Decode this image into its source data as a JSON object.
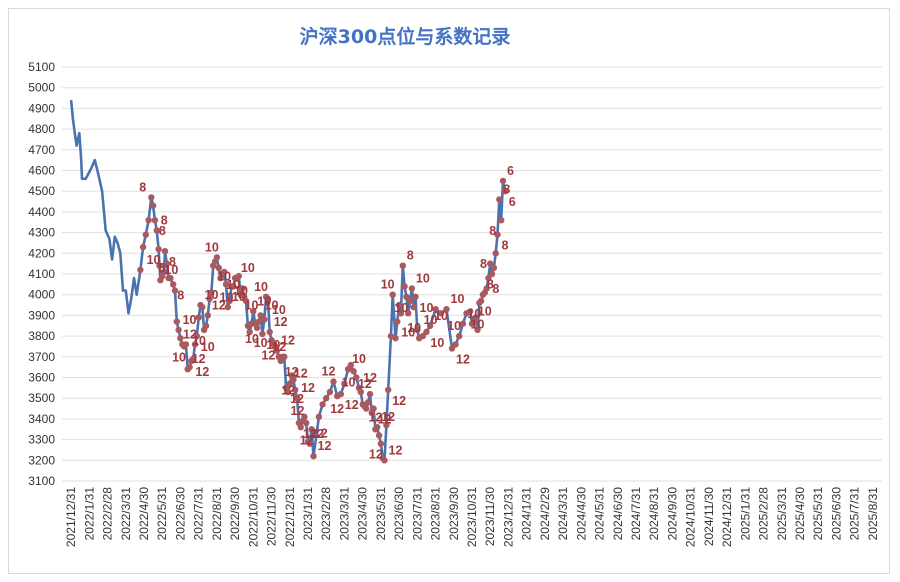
{
  "chart_data": {
    "type": "line",
    "title": "沪深300点位与系数记录",
    "xlabel": "",
    "ylabel": "",
    "ylim": [
      3100,
      5100
    ],
    "ytick_step": 100,
    "grid": true,
    "legend": "none",
    "colors": {
      "line": "#4a73b0",
      "marker": "#a85a5f",
      "label": "#a0393d",
      "grid": "#e0e0e0"
    },
    "x_tick_labels": [
      "2021/12/31",
      "2022/1/31",
      "2022/2/28",
      "2022/3/31",
      "2022/4/30",
      "2022/5/31",
      "2022/6/30",
      "2022/7/31",
      "2022/8/31",
      "2022/9/30",
      "2022/10/31",
      "2022/11/30",
      "2022/12/31",
      "2023/1/31",
      "2023/2/28",
      "2023/3/31",
      "2023/4/30",
      "2023/5/31",
      "2023/6/30",
      "2023/7/31",
      "2023/8/31",
      "2023/9/30",
      "2023/10/31",
      "2023/11/30",
      "2023/12/31",
      "2024/1/31",
      "2024/2/29",
      "2024/3/31",
      "2024/4/30",
      "2024/5/31",
      "2024/6/30",
      "2024/7/31",
      "2024/8/31",
      "2024/9/30",
      "2024/10/31",
      "2024/11/30",
      "2024/12/31",
      "2025/1/31",
      "2025/2/28",
      "2025/3/31",
      "2025/4/30",
      "2025/5/31",
      "2025/6/30",
      "2025/7/31",
      "2025/8/31"
    ],
    "series": [
      {
        "values": [
          [
            0,
            4940
          ],
          [
            0.1,
            4850
          ],
          [
            0.2,
            4780
          ],
          [
            0.3,
            4720
          ],
          [
            0.45,
            4780
          ],
          [
            0.55,
            4660
          ],
          [
            0.6,
            4560
          ],
          [
            0.8,
            4560
          ],
          [
            1.1,
            4610
          ],
          [
            1.3,
            4650
          ],
          [
            1.5,
            4580
          ],
          [
            1.7,
            4500
          ],
          [
            1.9,
            4310
          ],
          [
            2.1,
            4270
          ],
          [
            2.25,
            4170
          ],
          [
            2.4,
            4280
          ],
          [
            2.55,
            4250
          ],
          [
            2.7,
            4200
          ],
          [
            2.85,
            4020
          ],
          [
            3.0,
            4020
          ],
          [
            3.15,
            3910
          ],
          [
            3.3,
            3980
          ],
          [
            3.45,
            4080
          ],
          [
            3.6,
            4000
          ],
          [
            3.8,
            4120
          ],
          [
            3.95,
            4230
          ],
          [
            4.1,
            4290
          ],
          [
            4.25,
            4360
          ],
          [
            4.4,
            4470
          ],
          [
            4.5,
            4430
          ],
          [
            4.6,
            4360
          ],
          [
            4.7,
            4310
          ],
          [
            4.8,
            4220
          ],
          [
            4.85,
            4140
          ],
          [
            4.9,
            4070
          ],
          [
            5.0,
            4090
          ],
          [
            5.1,
            4110
          ],
          [
            5.15,
            4210
          ],
          [
            5.25,
            4150
          ],
          [
            5.35,
            4080
          ],
          [
            5.45,
            4080
          ],
          [
            5.6,
            4050
          ],
          [
            5.7,
            4020
          ],
          [
            5.8,
            3870
          ],
          [
            5.9,
            3830
          ],
          [
            6.0,
            3790
          ],
          [
            6.1,
            3760
          ],
          [
            6.2,
            3750
          ],
          [
            6.3,
            3760
          ],
          [
            6.4,
            3640
          ],
          [
            6.5,
            3650
          ],
          [
            6.6,
            3680
          ],
          [
            6.7,
            3690
          ],
          [
            6.8,
            3760
          ],
          [
            6.9,
            3800
          ],
          [
            7.0,
            3890
          ],
          [
            7.1,
            3950
          ],
          [
            7.2,
            3940
          ],
          [
            7.3,
            3830
          ],
          [
            7.4,
            3850
          ],
          [
            7.5,
            3900
          ],
          [
            7.6,
            3980
          ],
          [
            7.7,
            4010
          ],
          [
            7.8,
            4140
          ],
          [
            7.9,
            4160
          ],
          [
            8.0,
            4180
          ],
          [
            8.1,
            4130
          ],
          [
            8.2,
            4080
          ],
          [
            8.3,
            4100
          ],
          [
            8.4,
            4110
          ],
          [
            8.5,
            4050
          ],
          [
            8.6,
            3940
          ],
          [
            8.7,
            3970
          ],
          [
            8.8,
            4040
          ],
          [
            8.9,
            4040
          ],
          [
            9.0,
            4080
          ],
          [
            9.1,
            4080
          ],
          [
            9.2,
            4090
          ],
          [
            9.3,
            4000
          ],
          [
            9.4,
            4030
          ],
          [
            9.5,
            3990
          ],
          [
            9.6,
            3970
          ],
          [
            9.7,
            3850
          ],
          [
            9.8,
            3820
          ],
          [
            9.9,
            3860
          ],
          [
            10.0,
            3920
          ],
          [
            10.1,
            3860
          ],
          [
            10.2,
            3840
          ],
          [
            10.3,
            3870
          ],
          [
            10.4,
            3900
          ],
          [
            10.5,
            3810
          ],
          [
            10.6,
            3880
          ],
          [
            10.7,
            3990
          ],
          [
            10.8,
            3980
          ],
          [
            10.9,
            3820
          ],
          [
            11.0,
            3780
          ],
          [
            11.1,
            3760
          ],
          [
            11.2,
            3750
          ],
          [
            11.3,
            3730
          ],
          [
            11.4,
            3700
          ],
          [
            11.5,
            3680
          ],
          [
            11.6,
            3700
          ],
          [
            11.7,
            3700
          ],
          [
            11.8,
            3550
          ],
          [
            11.9,
            3530
          ],
          [
            12.0,
            3570
          ],
          [
            12.1,
            3610
          ],
          [
            12.2,
            3590
          ],
          [
            12.3,
            3540
          ],
          [
            12.4,
            3500
          ],
          [
            12.5,
            3380
          ],
          [
            12.6,
            3360
          ],
          [
            12.7,
            3390
          ],
          [
            12.8,
            3410
          ],
          [
            12.9,
            3380
          ],
          [
            13.0,
            3290
          ],
          [
            13.1,
            3280
          ],
          [
            13.2,
            3350
          ],
          [
            13.3,
            3220
          ],
          [
            13.6,
            3410
          ],
          [
            13.8,
            3470
          ],
          [
            14.0,
            3500
          ],
          [
            14.2,
            3530
          ],
          [
            14.4,
            3580
          ],
          [
            14.6,
            3510
          ],
          [
            14.8,
            3520
          ],
          [
            15.0,
            3570
          ],
          [
            15.2,
            3640
          ],
          [
            15.35,
            3660
          ],
          [
            15.5,
            3630
          ],
          [
            15.65,
            3600
          ],
          [
            15.8,
            3550
          ],
          [
            15.9,
            3530
          ],
          [
            16.0,
            3470
          ],
          [
            16.1,
            3460
          ],
          [
            16.2,
            3450
          ],
          [
            16.3,
            3480
          ],
          [
            16.4,
            3520
          ],
          [
            16.5,
            3430
          ],
          [
            16.6,
            3450
          ],
          [
            16.7,
            3350
          ],
          [
            16.8,
            3360
          ],
          [
            16.9,
            3320
          ],
          [
            17.0,
            3280
          ],
          [
            17.1,
            3210
          ],
          [
            17.2,
            3200
          ],
          [
            17.3,
            3370
          ],
          [
            17.4,
            3540
          ],
          [
            17.55,
            3800
          ],
          [
            17.65,
            4000
          ],
          [
            17.8,
            3790
          ],
          [
            17.9,
            3870
          ],
          [
            18.0,
            3950
          ],
          [
            18.1,
            3910
          ],
          [
            18.2,
            4140
          ],
          [
            18.3,
            4040
          ],
          [
            18.4,
            3990
          ],
          [
            18.5,
            3910
          ],
          [
            18.6,
            3970
          ],
          [
            18.7,
            4030
          ],
          [
            18.8,
            3940
          ],
          [
            18.9,
            3990
          ],
          [
            19.0,
            3830
          ],
          [
            19.1,
            3790
          ],
          [
            19.3,
            3800
          ],
          [
            19.5,
            3820
          ],
          [
            19.7,
            3850
          ],
          [
            20.0,
            3930
          ],
          [
            20.3,
            3910
          ],
          [
            20.6,
            3930
          ],
          [
            20.9,
            3740
          ],
          [
            21.1,
            3760
          ],
          [
            21.3,
            3800
          ],
          [
            21.5,
            3860
          ],
          [
            21.7,
            3910
          ],
          [
            21.9,
            3920
          ],
          [
            22.0,
            3860
          ],
          [
            22.1,
            3870
          ],
          [
            22.2,
            3890
          ],
          [
            22.3,
            3830
          ],
          [
            22.4,
            3960
          ],
          [
            22.5,
            3970
          ],
          [
            22.6,
            4000
          ],
          [
            22.7,
            4010
          ],
          [
            22.8,
            4030
          ],
          [
            22.9,
            4080
          ],
          [
            23.0,
            4150
          ],
          [
            23.1,
            4100
          ],
          [
            23.2,
            4130
          ],
          [
            23.3,
            4200
          ],
          [
            23.4,
            4290
          ],
          [
            23.5,
            4460
          ],
          [
            23.6,
            4360
          ],
          [
            23.7,
            4550
          ],
          [
            23.8,
            4500
          ]
        ],
        "markers_from_index": 24
      }
    ],
    "annotations": [
      {
        "x": 4.4,
        "y": 4470,
        "text": "8"
      },
      {
        "x": 4.6,
        "y": 4360,
        "text": "8"
      },
      {
        "x": 4.7,
        "y": 4310,
        "text": "8"
      },
      {
        "x": 4.8,
        "y": 4220,
        "text": "10"
      },
      {
        "x": 4.9,
        "y": 4070,
        "text": "10"
      },
      {
        "x": 5.15,
        "y": 4210,
        "text": "8"
      },
      {
        "x": 5.45,
        "y": 4080,
        "text": "8"
      },
      {
        "x": 5.6,
        "y": 4050,
        "text": "8"
      },
      {
        "x": 5.9,
        "y": 3830,
        "text": "10"
      },
      {
        "x": 6.2,
        "y": 3750,
        "text": "10"
      },
      {
        "x": 6.4,
        "y": 3640,
        "text": "12"
      },
      {
        "x": 6.6,
        "y": 3680,
        "text": "12"
      },
      {
        "x": 6.8,
        "y": 3760,
        "text": "12"
      },
      {
        "x": 6.9,
        "y": 3800,
        "text": "10"
      },
      {
        "x": 7.1,
        "y": 3950,
        "text": "10"
      },
      {
        "x": 7.3,
        "y": 3830,
        "text": "10"
      },
      {
        "x": 7.5,
        "y": 3900,
        "text": "12"
      },
      {
        "x": 7.8,
        "y": 4140,
        "text": "10"
      },
      {
        "x": 8.0,
        "y": 4180,
        "text": "10"
      },
      {
        "x": 8.3,
        "y": 4100,
        "text": "10"
      },
      {
        "x": 8.6,
        "y": 3940,
        "text": "10"
      },
      {
        "x": 8.8,
        "y": 4040,
        "text": "10"
      },
      {
        "x": 9.1,
        "y": 4080,
        "text": "10"
      },
      {
        "x": 9.3,
        "y": 4000,
        "text": "10"
      },
      {
        "x": 9.6,
        "y": 3970,
        "text": "10"
      },
      {
        "x": 9.8,
        "y": 3820,
        "text": "10"
      },
      {
        "x": 10.0,
        "y": 3920,
        "text": "10"
      },
      {
        "x": 10.2,
        "y": 3840,
        "text": "10"
      },
      {
        "x": 10.4,
        "y": 3900,
        "text": "10"
      },
      {
        "x": 10.5,
        "y": 3810,
        "text": "10"
      },
      {
        "x": 10.7,
        "y": 3990,
        "text": "10"
      },
      {
        "x": 10.8,
        "y": 3980,
        "text": "10"
      },
      {
        "x": 10.9,
        "y": 3820,
        "text": "12"
      },
      {
        "x": 11.1,
        "y": 3760,
        "text": "12"
      },
      {
        "x": 11.3,
        "y": 3730,
        "text": "12"
      },
      {
        "x": 11.5,
        "y": 3680,
        "text": "12"
      },
      {
        "x": 11.7,
        "y": 3700,
        "text": "12"
      },
      {
        "x": 11.8,
        "y": 3550,
        "text": "12"
      },
      {
        "x": 12.0,
        "y": 3570,
        "text": "12"
      },
      {
        "x": 12.2,
        "y": 3590,
        "text": "12"
      },
      {
        "x": 12.4,
        "y": 3500,
        "text": "12"
      },
      {
        "x": 12.5,
        "y": 3380,
        "text": "12"
      },
      {
        "x": 12.7,
        "y": 3390,
        "text": "12"
      },
      {
        "x": 12.9,
        "y": 3380,
        "text": "12"
      },
      {
        "x": 13.1,
        "y": 3280,
        "text": "12"
      },
      {
        "x": 13.2,
        "y": 3350,
        "text": "12"
      },
      {
        "x": 13.3,
        "y": 3220,
        "text": "12"
      },
      {
        "x": 14.0,
        "y": 3500,
        "text": "12"
      },
      {
        "x": 14.4,
        "y": 3580,
        "text": "12"
      },
      {
        "x": 14.8,
        "y": 3520,
        "text": "12"
      },
      {
        "x": 15.2,
        "y": 3640,
        "text": "10"
      },
      {
        "x": 15.5,
        "y": 3630,
        "text": "10"
      },
      {
        "x": 15.8,
        "y": 3550,
        "text": "12"
      },
      {
        "x": 16.1,
        "y": 3460,
        "text": "12"
      },
      {
        "x": 16.4,
        "y": 3520,
        "text": "12"
      },
      {
        "x": 16.6,
        "y": 3450,
        "text": "12"
      },
      {
        "x": 16.8,
        "y": 3360,
        "text": "12"
      },
      {
        "x": 17.0,
        "y": 3280,
        "text": "12"
      },
      {
        "x": 17.2,
        "y": 3200,
        "text": "12"
      },
      {
        "x": 17.4,
        "y": 3540,
        "text": "12"
      },
      {
        "x": 17.65,
        "y": 4000,
        "text": "10"
      },
      {
        "x": 17.9,
        "y": 3870,
        "text": "10"
      },
      {
        "x": 18.2,
        "y": 4140,
        "text": "8"
      },
      {
        "x": 18.4,
        "y": 3990,
        "text": "10"
      },
      {
        "x": 18.7,
        "y": 4030,
        "text": "10"
      },
      {
        "x": 18.9,
        "y": 3990,
        "text": "10"
      },
      {
        "x": 19.1,
        "y": 3790,
        "text": "10"
      },
      {
        "x": 19.5,
        "y": 3820,
        "text": "10"
      },
      {
        "x": 19.7,
        "y": 3850,
        "text": "10"
      },
      {
        "x": 20.0,
        "y": 3930,
        "text": "10"
      },
      {
        "x": 20.6,
        "y": 3930,
        "text": "10"
      },
      {
        "x": 20.9,
        "y": 3740,
        "text": "12"
      },
      {
        "x": 21.3,
        "y": 3800,
        "text": "10"
      },
      {
        "x": 21.7,
        "y": 3910,
        "text": "10"
      },
      {
        "x": 22.1,
        "y": 3870,
        "text": "10"
      },
      {
        "x": 22.4,
        "y": 3960,
        "text": "10"
      },
      {
        "x": 22.6,
        "y": 4000,
        "text": "8"
      },
      {
        "x": 22.9,
        "y": 4080,
        "text": "8"
      },
      {
        "x": 23.1,
        "y": 4100,
        "text": "8"
      },
      {
        "x": 23.4,
        "y": 4290,
        "text": "8"
      },
      {
        "x": 23.5,
        "y": 4460,
        "text": "8"
      },
      {
        "x": 23.6,
        "y": 4360,
        "text": "8"
      },
      {
        "x": 23.7,
        "y": 4550,
        "text": "6"
      },
      {
        "x": 23.8,
        "y": 4500,
        "text": "6"
      }
    ]
  }
}
